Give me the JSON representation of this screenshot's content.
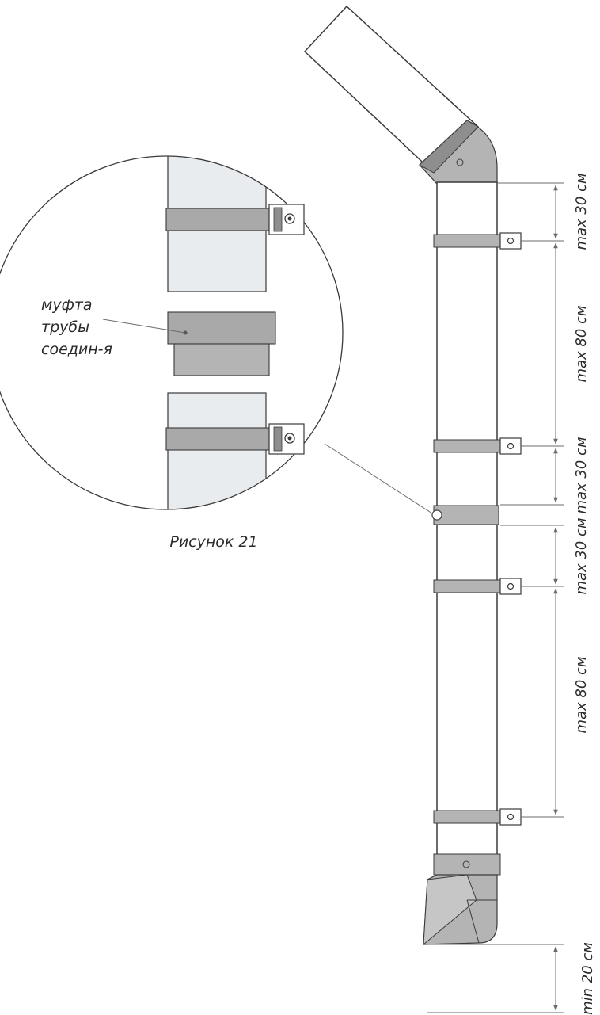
{
  "figure": {
    "caption": "Рисунок 21",
    "callout_label": [
      "муфта",
      "трубы",
      "соедин-я"
    ]
  },
  "dimensions": [
    {
      "id": "d1",
      "text": "max 30 см"
    },
    {
      "id": "d2",
      "text": "max 80 см"
    },
    {
      "id": "d3",
      "text": "max 30 см"
    },
    {
      "id": "d4",
      "text": "max 30 см"
    },
    {
      "id": "d5",
      "text": "max 80 см"
    },
    {
      "id": "d6",
      "text": "min 20 см"
    }
  ],
  "colors": {
    "pipe_fill": "#ffffff",
    "part_fill": "#b4b4b4",
    "part_dark": "#8e8e8e",
    "detail_pipe": "#e9ecef",
    "line": "#3a3a3a",
    "dim_line": "#6b6b6b"
  }
}
